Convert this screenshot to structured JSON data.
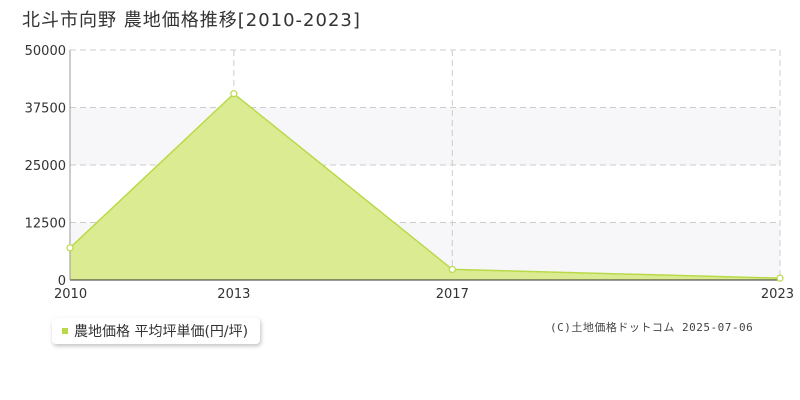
{
  "chart_data": {
    "type": "area",
    "title": "北斗市向野 農地価格推移[2010-2023]",
    "x": [
      2010,
      2013,
      2017,
      2023
    ],
    "x_tick_labels": [
      "2010",
      "2013",
      "2017",
      "2023"
    ],
    "xlim": [
      2010,
      2023
    ],
    "ylim": [
      0,
      50000
    ],
    "y_ticks": [
      0,
      12500,
      25000,
      37500,
      50000
    ],
    "y_tick_labels": [
      "0",
      "12500",
      "25000",
      "37500",
      "50000"
    ],
    "series": [
      {
        "name": "農地価格 平均坪単価(円/坪)",
        "values": [
          7000,
          40500,
          2300,
          400
        ]
      }
    ],
    "grid": true,
    "legend_position": "bottom-left",
    "colors": {
      "fill": "#dbeb91",
      "line": "#b8da4a",
      "band": "#f7f7f9",
      "grid": "#cccccc"
    }
  },
  "credit": "(C)土地価格ドットコム 2025-07-06"
}
